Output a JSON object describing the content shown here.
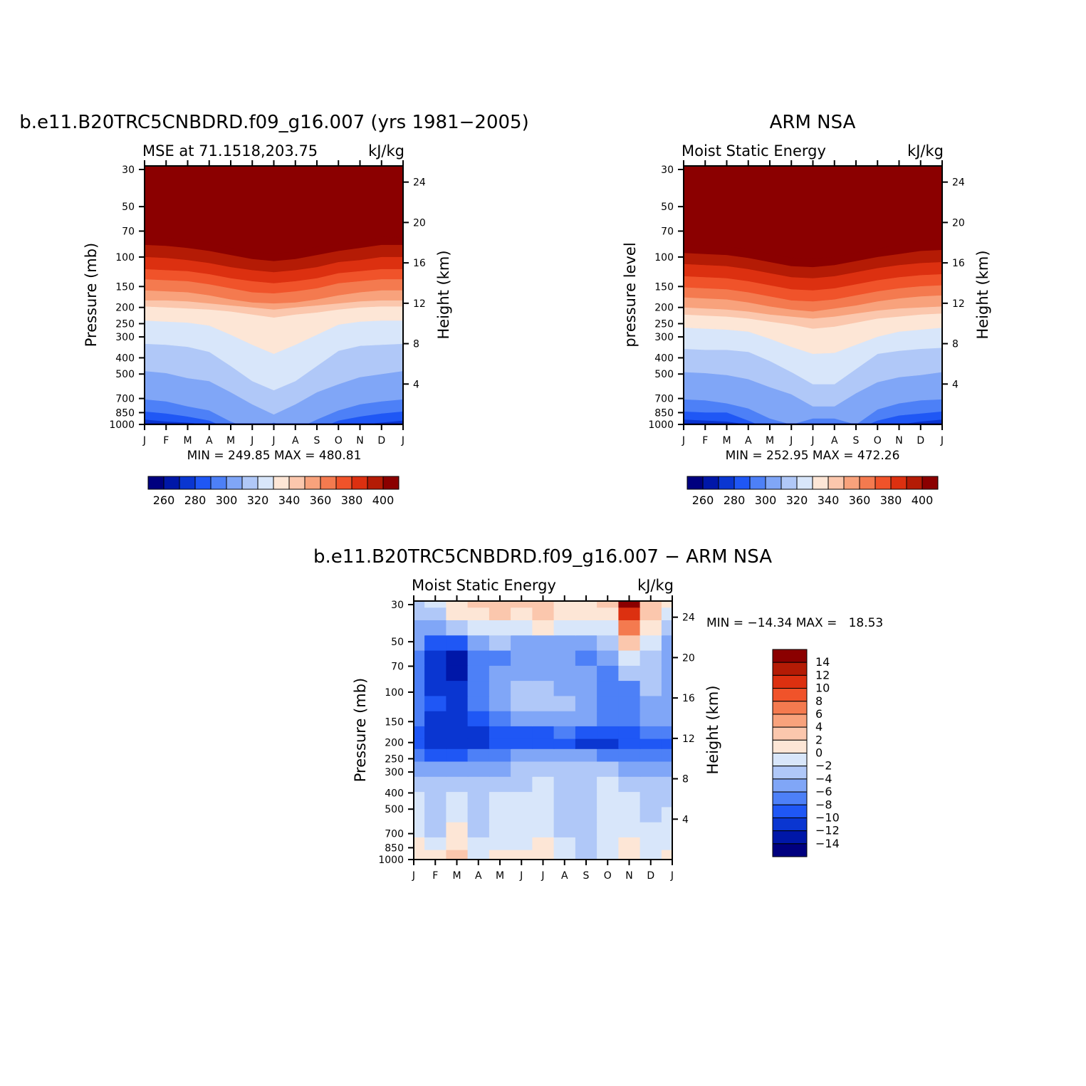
{
  "chart_data": [
    {
      "type": "heatmap",
      "title": "b.e11.B20TRC5CNBDRD.f09_g16.007 (yrs 1981−2005)",
      "subtitle_left": "MSE at 71.1518,203.75",
      "subtitle_right": "kJ/kg",
      "ylabel": "Pressure (mb)",
      "ylabel_right": "Height (km)",
      "x": [
        "J",
        "F",
        "M",
        "A",
        "M",
        "J",
        "J",
        "A",
        "S",
        "O",
        "N",
        "D",
        "J"
      ],
      "y_pressure_ticks": [
        30,
        50,
        70,
        100,
        150,
        200,
        250,
        300,
        400,
        500,
        700,
        850,
        1000
      ],
      "y_height_ticks": [
        4,
        8,
        12,
        16,
        20,
        24
      ],
      "stats_label": "MIN = 249.85 MAX = 480.81",
      "colorbar_ticks": [
        "260",
        "280",
        "300",
        "320",
        "340",
        "360",
        "380",
        "400"
      ],
      "colorbar_colors": [
        "#00007f",
        "#0017a8",
        "#0a36d1",
        "#1f57f5",
        "#4d80f7",
        "#80a6f7",
        "#b0c8f8",
        "#d8e6fa",
        "#fde6d6",
        "#fbc7ad",
        "#f8a27c",
        "#f47a4f",
        "#f0532a",
        "#dc3010",
        "#b41b05",
        "#8b0000"
      ],
      "levels": [
        [
          258,
          270,
          282,
          294,
          306,
          318,
          330,
          342,
          354,
          366,
          378,
          390,
          402,
          420
        ],
        [
          258,
          270,
          282,
          294,
          306,
          318,
          330,
          342,
          354,
          366,
          378,
          390,
          402,
          420
        ]
      ],
      "boundaries_km": [
        [
          0.0,
          0.0,
          0.0,
          -0.5,
          -1,
          -1,
          -1,
          -1,
          -1,
          -0.5,
          0.0,
          0.0,
          0.0
        ],
        [
          0.5,
          0.3,
          0.2,
          0.0,
          -0.5,
          -1,
          -1,
          -1,
          -1,
          -0.5,
          0.0,
          0.2,
          0.4
        ],
        [
          1.3,
          1.1,
          0.8,
          0.4,
          -0.5,
          -1,
          -1,
          -1,
          -0.5,
          0.4,
          0.8,
          1.1,
          1.3
        ],
        [
          2.5,
          2.3,
          1.8,
          1.4,
          0.3,
          -0.5,
          0.2,
          -0.5,
          0.5,
          1.4,
          2.0,
          2.3,
          2.5
        ],
        [
          5.3,
          5.1,
          4.6,
          4.3,
          3.2,
          2.0,
          1.0,
          2.0,
          3.2,
          4.0,
          4.7,
          5.0,
          5.3
        ],
        [
          8.0,
          7.9,
          7.7,
          7.2,
          5.8,
          4.3,
          3.4,
          4.3,
          5.8,
          7.3,
          7.8,
          7.9,
          8.0
        ],
        [
          10.3,
          10.2,
          10.1,
          9.8,
          8.9,
          7.9,
          7.0,
          7.9,
          8.9,
          9.9,
          10.2,
          10.3,
          10.3
        ],
        [
          11.7,
          11.6,
          11.5,
          11.4,
          11.2,
          10.9,
          10.6,
          10.9,
          11.1,
          11.4,
          11.6,
          11.7,
          11.7
        ],
        [
          12.3,
          12.3,
          12.2,
          12.0,
          11.8,
          11.6,
          11.4,
          11.6,
          11.8,
          12.0,
          12.2,
          12.3,
          12.3
        ],
        [
          13.3,
          13.2,
          13.1,
          12.8,
          12.4,
          12.1,
          12.0,
          12.1,
          12.4,
          12.8,
          13.1,
          13.3,
          13.3
        ],
        [
          14.4,
          14.3,
          14.2,
          13.9,
          13.5,
          13.1,
          13.0,
          13.2,
          13.5,
          14.0,
          14.2,
          14.4,
          14.4
        ],
        [
          15.4,
          15.3,
          15.2,
          14.9,
          14.5,
          14.2,
          14.0,
          14.2,
          14.5,
          15.0,
          15.2,
          15.4,
          15.4
        ],
        [
          16.6,
          16.5,
          16.3,
          16.0,
          15.6,
          15.3,
          15.1,
          15.3,
          15.6,
          16.1,
          16.3,
          16.6,
          16.6
        ],
        [
          17.8,
          17.7,
          17.5,
          17.2,
          16.8,
          16.4,
          16.2,
          16.4,
          16.8,
          17.2,
          17.5,
          17.8,
          17.8
        ],
        [
          18.5,
          18.5,
          18.3,
          18.0,
          17.5,
          17.1,
          16.9,
          17.1,
          17.6,
          17.9,
          18.0,
          18.6,
          18.5
        ]
      ]
    },
    {
      "type": "heatmap",
      "title": "ARM NSA",
      "subtitle_left": "Moist Static Energy",
      "subtitle_right": "kJ/kg",
      "ylabel": "pressure level",
      "ylabel_right": "Height (km)",
      "x": [
        "J",
        "F",
        "M",
        "A",
        "M",
        "J",
        "J",
        "A",
        "S",
        "O",
        "N",
        "D",
        "J"
      ],
      "y_pressure_ticks": [
        30,
        50,
        70,
        100,
        150,
        200,
        250,
        300,
        400,
        500,
        700,
        850,
        1000
      ],
      "y_height_ticks": [
        4,
        8,
        12,
        16,
        20,
        24
      ],
      "stats_label": "MIN = 252.95 MAX = 472.26",
      "colorbar_ticks": [
        "260",
        "280",
        "300",
        "320",
        "340",
        "360",
        "380",
        "400"
      ],
      "colorbar_colors": [
        "#00007f",
        "#0017a8",
        "#0a36d1",
        "#1f57f5",
        "#4d80f7",
        "#80a6f7",
        "#b0c8f8",
        "#d8e6fa",
        "#fde6d6",
        "#fbc7ad",
        "#f8a27c",
        "#f47a4f",
        "#f0532a",
        "#dc3010",
        "#b41b05",
        "#8b0000"
      ],
      "boundaries_km": [
        [
          0.0,
          0.0,
          0.0,
          -0.5,
          -1,
          -1,
          -1,
          -1,
          -1,
          -0.5,
          0.0,
          0.0,
          0.0
        ],
        [
          0.5,
          0.4,
          0.3,
          0.0,
          -0.5,
          -1,
          -1,
          -1,
          -1,
          -0.5,
          0.0,
          0.3,
          0.5
        ],
        [
          1.3,
          1.2,
          1.2,
          0.4,
          -0.5,
          -1,
          -1,
          -1,
          -0.5,
          0.4,
          0.9,
          1.1,
          1.3
        ],
        [
          2.5,
          2.4,
          2.1,
          1.6,
          0.6,
          0.0,
          0.6,
          0.6,
          0.0,
          1.5,
          2.1,
          2.4,
          2.5
        ],
        [
          5.2,
          5.1,
          4.9,
          4.5,
          3.7,
          3.0,
          1.8,
          1.8,
          3.1,
          4.2,
          4.7,
          4.9,
          5.2
        ],
        [
          7.5,
          7.4,
          7.4,
          7.2,
          6.3,
          5.2,
          4.0,
          4.0,
          5.5,
          7.0,
          7.3,
          7.5,
          7.6
        ],
        [
          9.6,
          9.5,
          9.4,
          9.2,
          8.5,
          7.7,
          7.0,
          7.1,
          7.9,
          8.7,
          9.2,
          9.4,
          9.6
        ],
        [
          10.9,
          10.8,
          10.7,
          10.5,
          10.2,
          9.9,
          9.5,
          9.7,
          10.1,
          10.5,
          10.7,
          10.9,
          11.0
        ],
        [
          11.6,
          11.5,
          11.4,
          11.2,
          10.9,
          10.7,
          10.5,
          10.7,
          11.0,
          11.3,
          11.5,
          11.6,
          11.7
        ],
        [
          12.6,
          12.5,
          12.4,
          12.1,
          11.7,
          11.4,
          11.2,
          11.5,
          11.8,
          12.2,
          12.5,
          12.7,
          12.8
        ],
        [
          13.6,
          13.5,
          13.4,
          13.1,
          12.7,
          12.3,
          12.2,
          12.4,
          12.8,
          13.2,
          13.5,
          13.7,
          13.8
        ],
        [
          14.7,
          14.6,
          14.5,
          14.2,
          13.8,
          13.4,
          13.3,
          13.5,
          13.9,
          14.3,
          14.6,
          14.8,
          14.9
        ],
        [
          15.9,
          15.8,
          15.7,
          15.4,
          15.0,
          14.6,
          14.5,
          14.7,
          15.1,
          15.5,
          15.8,
          16.0,
          16.1
        ],
        [
          17.0,
          16.9,
          16.8,
          16.5,
          16.1,
          15.7,
          15.6,
          15.8,
          16.2,
          16.6,
          16.9,
          17.2,
          17.3
        ],
        [
          17.8,
          17.7,
          17.6,
          17.4,
          16.9,
          16.5,
          16.4,
          16.6,
          17.0,
          17.4,
          17.8,
          18.2,
          18.3
        ]
      ]
    },
    {
      "type": "heatmap",
      "title": "b.e11.B20TRC5CNBDRD.f09_g16.007 − ARM NSA",
      "subtitle_left": "Moist Static Energy",
      "subtitle_right": "kJ/kg",
      "ylabel": "Pressure (mb)",
      "ylabel_right": "Height (km)",
      "x": [
        "J",
        "F",
        "M",
        "A",
        "M",
        "J",
        "J",
        "A",
        "S",
        "O",
        "N",
        "D",
        "J"
      ],
      "y_pressure_ticks": [
        30,
        50,
        70,
        100,
        150,
        200,
        250,
        300,
        400,
        500,
        700,
        850,
        1000
      ],
      "y_height_ticks": [
        4,
        8,
        12,
        16,
        20,
        24
      ],
      "stats_label": "MIN = −14.34 MAX =   18.53",
      "colorbar_ticks": [
        "14",
        "12",
        "10",
        "8",
        "6",
        "4",
        "2",
        "0",
        "−2",
        "−4",
        "−6",
        "−8",
        "−10",
        "−12",
        "−14"
      ],
      "colorbar_colors": [
        "#8b0000",
        "#b41b05",
        "#dc3010",
        "#f0532a",
        "#f47a4f",
        "#f8a27c",
        "#fbc7ad",
        "#fde6d6",
        "#d8e6fa",
        "#b0c8f8",
        "#80a6f7",
        "#4d80f7",
        "#1f57f5",
        "#0a36d1",
        "#0017a8",
        "#00007f"
      ],
      "cells": [
        {
          "note": "grid columns Jan..Jan (13), rows from 1000 mb upward; values in kJ/kg"
        },
        {
          "row_km": 0.5,
          "values": [
            1,
            1,
            3,
            0,
            1,
            1,
            1,
            -1,
            -3,
            -1,
            2,
            0,
            1
          ]
        },
        {
          "row_km": 1.5,
          "values": [
            1,
            0,
            2,
            -1,
            0,
            0,
            1,
            -1,
            -3,
            -1,
            1,
            -1,
            0
          ]
        },
        {
          "row_km": 3.0,
          "values": [
            -1,
            -2,
            1,
            -2,
            -1,
            -1,
            0,
            -2,
            -3,
            -1,
            0,
            -1,
            -1
          ]
        },
        {
          "row_km": 4.5,
          "values": [
            -1,
            -2,
            0,
            -2,
            -1,
            -1,
            -1,
            -2,
            -3,
            -1,
            -1,
            -2,
            -1
          ]
        },
        {
          "row_km": 6.0,
          "values": [
            -1,
            -2,
            -1,
            -3,
            -1,
            -1,
            -1,
            -2,
            -3,
            -1,
            -1,
            -3,
            -2
          ]
        },
        {
          "row_km": 7.5,
          "values": [
            -2,
            -2,
            -2,
            -3,
            -2,
            -2,
            -1,
            -2,
            -3,
            -1,
            -2,
            -3,
            -2
          ]
        },
        {
          "row_km": 9.0,
          "values": [
            -4,
            -5,
            -4,
            -4,
            -4,
            -3,
            -3,
            -3,
            -3,
            -3,
            -4,
            -4,
            -4
          ]
        },
        {
          "row_km": 10.5,
          "values": [
            -7,
            -8,
            -8,
            -7,
            -6,
            -5,
            -5,
            -5,
            -5,
            -6,
            -7,
            -7,
            -6
          ]
        },
        {
          "row_km": 11.5,
          "values": [
            -9,
            -11,
            -11,
            -10,
            -8,
            -8,
            -9,
            -8,
            -10,
            -11,
            -9,
            -8,
            -8
          ]
        },
        {
          "row_km": 12.5,
          "values": [
            -8,
            -11,
            -11,
            -10,
            -8,
            -8,
            -8,
            -7,
            -8,
            -8,
            -8,
            -7,
            -7
          ]
        },
        {
          "row_km": 14.0,
          "values": [
            -7,
            -10,
            -10,
            -8,
            -6,
            -5,
            -5,
            -5,
            -5,
            -6,
            -7,
            -5,
            -5
          ]
        },
        {
          "row_km": 15.5,
          "values": [
            -7,
            -9,
            -10,
            -7,
            -5,
            -3,
            -3,
            -3,
            -5,
            -6,
            -7,
            -4,
            -5
          ]
        },
        {
          "row_km": 17.0,
          "values": [
            -7,
            -10,
            -11,
            -7,
            -5,
            -3,
            -3,
            -4,
            -5,
            -6,
            -6,
            -3,
            -5
          ]
        },
        {
          "row_km": 18.5,
          "values": [
            -6,
            -10,
            -12,
            -7,
            -5,
            -4,
            -4,
            -4,
            -5,
            -6,
            -3,
            -2,
            -5
          ]
        },
        {
          "row_km": 20.0,
          "values": [
            -6,
            -11,
            -13,
            -7,
            -6,
            -5,
            -5,
            -5,
            -6,
            -5,
            0,
            -2,
            -5
          ]
        },
        {
          "row_km": 21.5,
          "values": [
            -5,
            -8,
            -9,
            -5,
            -3,
            -4,
            -4,
            -4,
            -4,
            -3,
            4,
            -1,
            -4
          ]
        },
        {
          "row_km": 23.0,
          "values": [
            -4,
            -5,
            -3,
            -1,
            0,
            0,
            1,
            -1,
            -1,
            0,
            8,
            2,
            -2
          ]
        },
        {
          "row_km": 24.5,
          "values": [
            -3,
            -2,
            1,
            2,
            3,
            2,
            3,
            1,
            1,
            2,
            12,
            4,
            0
          ]
        },
        {
          "row_km": 25.5,
          "values": [
            -3,
            -1,
            2,
            3,
            4,
            3,
            4,
            2,
            2,
            3,
            16,
            4,
            1
          ]
        }
      ]
    }
  ]
}
